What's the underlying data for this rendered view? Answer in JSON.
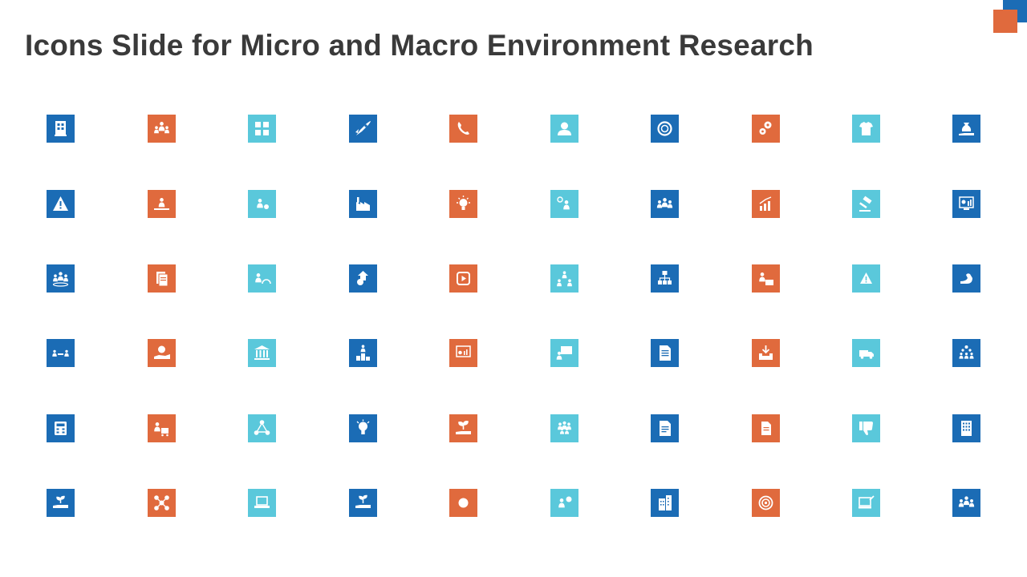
{
  "title": "Icons Slide for Micro and Macro Environment Research",
  "colors": {
    "blue": "#1b6cb5",
    "orange": "#e06a3d",
    "teal": "#5ac8db",
    "title_text": "#3a3a3a"
  },
  "icons": [
    [
      {
        "name": "building-icon",
        "color": "blue"
      },
      {
        "name": "team-leader-icon",
        "color": "orange"
      },
      {
        "name": "puzzle-people-icon",
        "color": "teal"
      },
      {
        "name": "rocket-icon",
        "color": "blue"
      },
      {
        "name": "phone-icon",
        "color": "orange"
      },
      {
        "name": "user-profile-icon",
        "color": "teal"
      },
      {
        "name": "circular-cycle-icon",
        "color": "blue"
      },
      {
        "name": "gears-icon",
        "color": "orange"
      },
      {
        "name": "shirt-icon",
        "color": "teal"
      },
      {
        "name": "money-bag-hand-icon",
        "color": "blue"
      }
    ],
    [
      {
        "name": "warning-icon",
        "color": "blue"
      },
      {
        "name": "person-crossroads-icon",
        "color": "orange"
      },
      {
        "name": "person-idea-icon",
        "color": "teal"
      },
      {
        "name": "factory-icon",
        "color": "blue"
      },
      {
        "name": "idea-bulb-icon",
        "color": "orange"
      },
      {
        "name": "person-question-icon",
        "color": "teal"
      },
      {
        "name": "group-icon",
        "color": "blue"
      },
      {
        "name": "growth-chart-icon",
        "color": "orange"
      },
      {
        "name": "gavel-icon",
        "color": "teal"
      },
      {
        "name": "analytics-screen-icon",
        "color": "blue"
      }
    ],
    [
      {
        "name": "team-circle-icon",
        "color": "blue"
      },
      {
        "name": "documents-icon",
        "color": "orange"
      },
      {
        "name": "person-speedometer-icon",
        "color": "teal"
      },
      {
        "name": "dollar-arrow-icon",
        "color": "blue"
      },
      {
        "name": "video-play-icon",
        "color": "orange"
      },
      {
        "name": "network-people-icon",
        "color": "teal"
      },
      {
        "name": "org-chart-icon",
        "color": "blue"
      },
      {
        "name": "person-desk-icon",
        "color": "orange"
      },
      {
        "name": "alert-triangle-icon",
        "color": "teal"
      },
      {
        "name": "strength-arm-icon",
        "color": "blue"
      }
    ],
    [
      {
        "name": "meeting-icon",
        "color": "blue"
      },
      {
        "name": "money-hand-icon",
        "color": "orange"
      },
      {
        "name": "bank-icon",
        "color": "teal"
      },
      {
        "name": "leaderboard-icon",
        "color": "blue"
      },
      {
        "name": "presentation-chart-icon",
        "color": "orange"
      },
      {
        "name": "presenter-board-icon",
        "color": "teal"
      },
      {
        "name": "document-icon",
        "color": "blue"
      },
      {
        "name": "inbox-download-icon",
        "color": "orange"
      },
      {
        "name": "delivery-truck-icon",
        "color": "teal"
      },
      {
        "name": "hierarchy-people-icon",
        "color": "blue"
      }
    ],
    [
      {
        "name": "calculator-icon",
        "color": "blue"
      },
      {
        "name": "person-cart-icon",
        "color": "orange"
      },
      {
        "name": "people-triangle-icon",
        "color": "teal"
      },
      {
        "name": "lightbulb-icon",
        "color": "blue"
      },
      {
        "name": "plant-hand-icon",
        "color": "orange"
      },
      {
        "name": "crowd-icon",
        "color": "teal"
      },
      {
        "name": "text-document-icon",
        "color": "blue"
      },
      {
        "name": "file-icon",
        "color": "orange"
      },
      {
        "name": "thumbs-down-icon",
        "color": "teal"
      },
      {
        "name": "office-building-icon",
        "color": "blue"
      }
    ],
    [
      {
        "name": "seedling-hand-icon",
        "color": "blue"
      },
      {
        "name": "molecule-network-icon",
        "color": "orange"
      },
      {
        "name": "laptop-icon",
        "color": "teal"
      },
      {
        "name": "sprout-hand-icon",
        "color": "blue"
      },
      {
        "name": "at-sign-icon",
        "color": "orange"
      },
      {
        "name": "person-chat-icon",
        "color": "teal"
      },
      {
        "name": "city-building-icon",
        "color": "blue"
      },
      {
        "name": "target-icon",
        "color": "orange"
      },
      {
        "name": "computer-edit-icon",
        "color": "teal"
      },
      {
        "name": "team-group-icon",
        "color": "blue"
      }
    ]
  ]
}
